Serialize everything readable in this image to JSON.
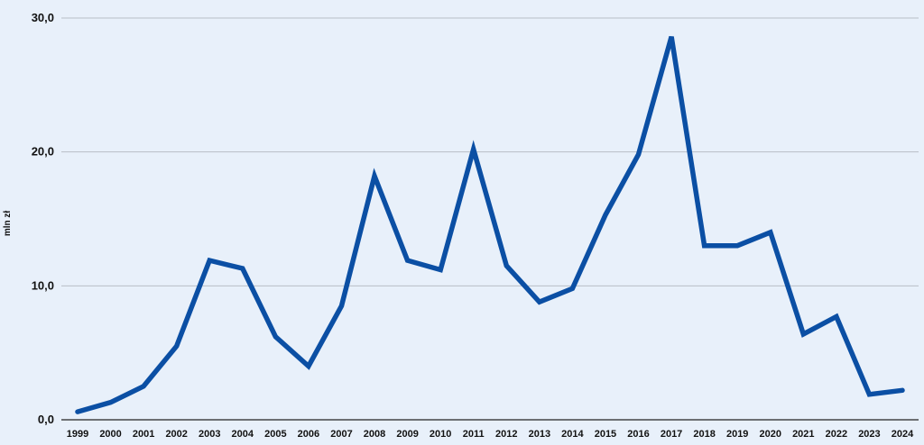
{
  "chart_data": {
    "type": "line",
    "ylabel": "mln zł",
    "x": [
      "1999",
      "2000",
      "2001",
      "2002",
      "2003",
      "2004",
      "2005",
      "2006",
      "2007",
      "2008",
      "2009",
      "2010",
      "2011",
      "2012",
      "2013",
      "2014",
      "2015",
      "2016",
      "2017",
      "2018",
      "2019",
      "2020",
      "2021",
      "2022",
      "2023",
      "2024"
    ],
    "series": [
      {
        "values": [
          0.6,
          1.3,
          2.5,
          5.5,
          11.9,
          11.3,
          6.2,
          4.0,
          8.5,
          18.2,
          11.9,
          11.2,
          20.2,
          11.5,
          8.8,
          9.8,
          15.3,
          19.8,
          28.6,
          13.0,
          13.0,
          14.0,
          6.4,
          7.7,
          1.9,
          2.2
        ]
      }
    ],
    "ylim": [
      0,
      30
    ],
    "yticks": [
      "0,0",
      "10,0",
      "20,0",
      "30,0"
    ],
    "grid": true,
    "line_color": "#0b4fa4"
  }
}
